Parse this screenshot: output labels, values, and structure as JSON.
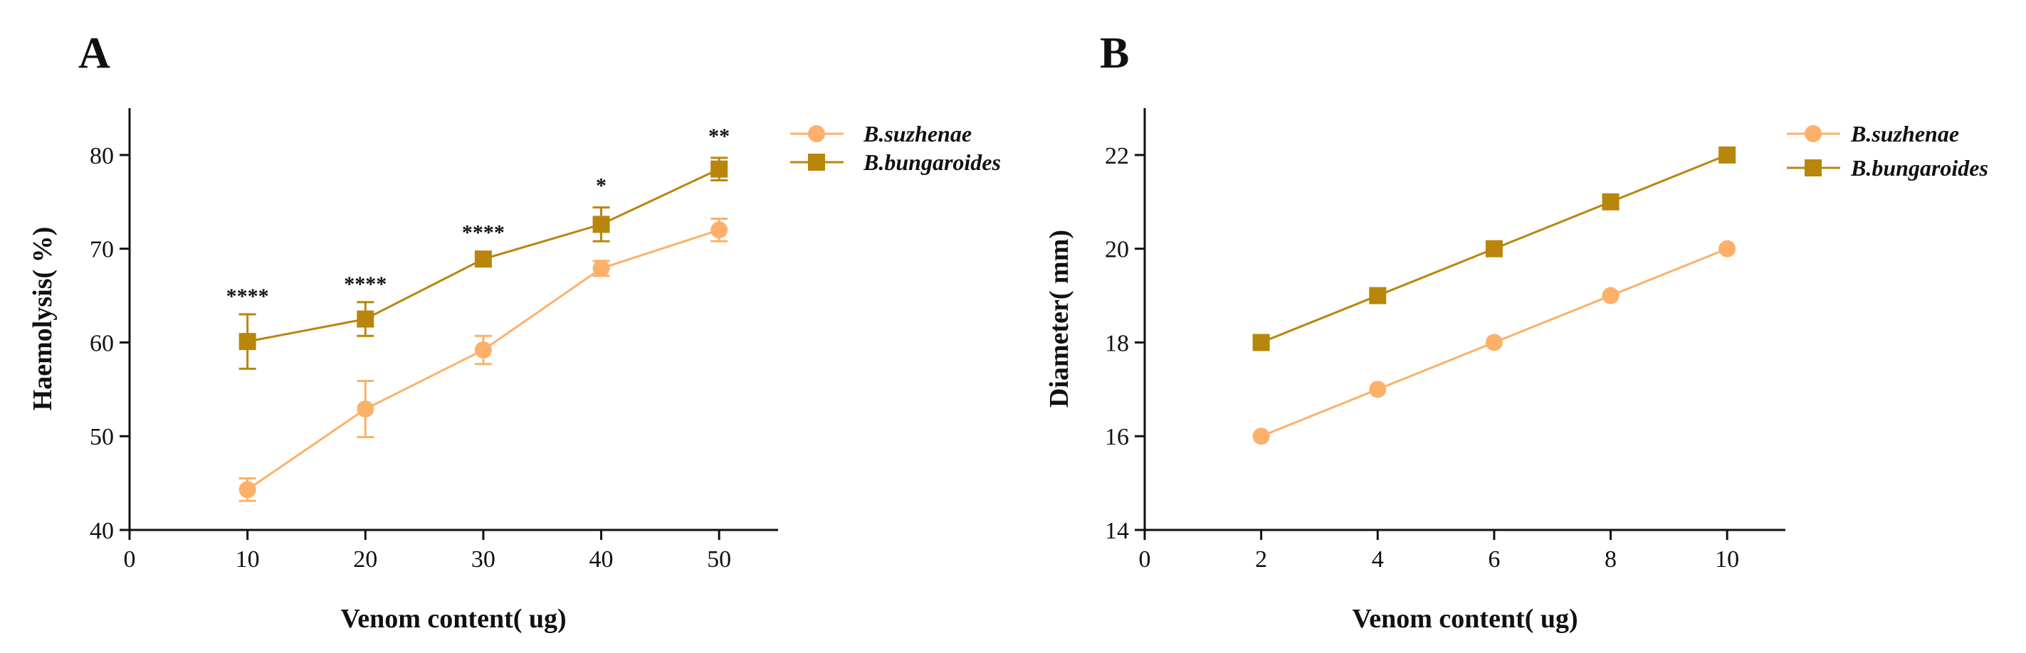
{
  "colors": {
    "suzhenae": "#FDB06A",
    "bungaroides": "#B8860B",
    "axis": "#111111"
  },
  "chart_data": [
    {
      "panel": "A",
      "type": "line",
      "xlabel": "Venom content( ug)",
      "ylabel": "Haemolysis( %)",
      "xlim": [
        0,
        55
      ],
      "ylim": [
        40,
        85
      ],
      "xticks": [
        0,
        10,
        20,
        30,
        40,
        50
      ],
      "yticks": [
        40,
        50,
        60,
        70,
        80
      ],
      "legend_position": "top-right",
      "series": [
        {
          "name": "B.suzhenae",
          "marker": "circle",
          "x": [
            10,
            20,
            30,
            40,
            50
          ],
          "y": [
            44.3,
            52.9,
            59.2,
            67.9,
            72.0
          ],
          "err": [
            1.2,
            3.0,
            1.5,
            0.8,
            1.2
          ]
        },
        {
          "name": "B.bungaroides",
          "marker": "square",
          "x": [
            10,
            20,
            30,
            40,
            50
          ],
          "y": [
            60.1,
            62.5,
            68.9,
            72.6,
            78.5
          ],
          "err": [
            2.9,
            1.8,
            0.5,
            1.8,
            1.2
          ]
        }
      ],
      "annotations": [
        {
          "x": 10,
          "y": 64.2,
          "text": "****"
        },
        {
          "x": 20,
          "y": 65.5,
          "text": "****"
        },
        {
          "x": 30,
          "y": 71.0,
          "text": "****"
        },
        {
          "x": 40,
          "y": 76.0,
          "text": "*"
        },
        {
          "x": 50,
          "y": 81.3,
          "text": "**"
        }
      ]
    },
    {
      "panel": "B",
      "type": "line",
      "xlabel": "Venom content( ug)",
      "ylabel": "Diameter( mm)",
      "xlim": [
        0,
        11
      ],
      "ylim": [
        14,
        23
      ],
      "xticks": [
        0,
        2,
        4,
        6,
        8,
        10
      ],
      "yticks": [
        14,
        16,
        18,
        20,
        22
      ],
      "legend_position": "top-right",
      "series": [
        {
          "name": "B.suzhenae",
          "marker": "circle",
          "x": [
            2,
            4,
            6,
            8,
            10
          ],
          "y": [
            16,
            17,
            18,
            19,
            20
          ]
        },
        {
          "name": "B.bungaroides",
          "marker": "square",
          "x": [
            2,
            4,
            6,
            8,
            10
          ],
          "y": [
            18,
            19,
            20,
            21,
            22
          ]
        }
      ],
      "annotations": []
    }
  ]
}
